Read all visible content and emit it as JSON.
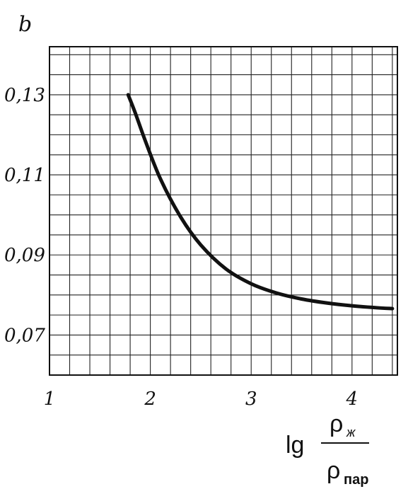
{
  "chart_data": {
    "type": "line",
    "title": "",
    "ylabel": "b",
    "xlabel": {
      "prefix": "lg",
      "numerator": "ρ",
      "numerator_sub": "ж",
      "denominator": "ρ",
      "denominator_sub": "пар"
    },
    "xlim": [
      1,
      4.45
    ],
    "ylim": [
      0.06,
      0.142
    ],
    "xticks": [
      1,
      2,
      3,
      4
    ],
    "xtick_labels": [
      "1",
      "2",
      "3",
      "4"
    ],
    "yticks": [
      0.07,
      0.09,
      0.11,
      0.13
    ],
    "ytick_labels": [
      "0,07",
      "0,09",
      "0,11",
      "0,13"
    ],
    "grid": true,
    "grid_step": {
      "x": 0.2,
      "y": 0.005
    },
    "series": [
      {
        "color": "#111111",
        "x": [
          1.78,
          1.85,
          1.95,
          2.1,
          2.3,
          2.5,
          2.75,
          3.0,
          3.25,
          3.5,
          3.75,
          4.0,
          4.25,
          4.4
        ],
        "y": [
          0.13,
          0.1255,
          0.1185,
          0.109,
          0.0995,
          0.0925,
          0.0865,
          0.0828,
          0.0805,
          0.079,
          0.078,
          0.0773,
          0.0768,
          0.0766
        ]
      }
    ]
  }
}
